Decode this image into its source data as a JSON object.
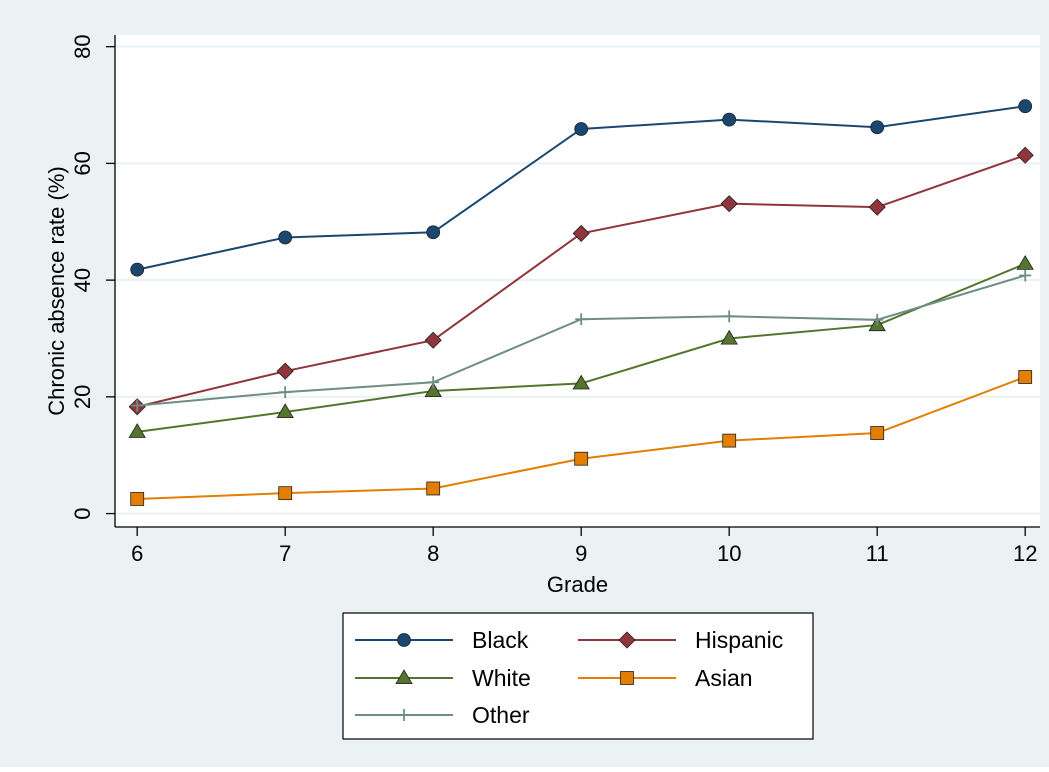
{
  "chart_data": {
    "type": "line",
    "title": "",
    "xlabel": "Grade",
    "ylabel": "Chronic absence rate (%)",
    "x": [
      6,
      7,
      8,
      9,
      10,
      11,
      12
    ],
    "x_tick_labels": [
      "6",
      "7",
      "8",
      "9",
      "10",
      "11",
      "12"
    ],
    "y_ticks": [
      0,
      20,
      40,
      60,
      80
    ],
    "y_tick_labels": [
      "0",
      "20",
      "40",
      "60",
      "80"
    ],
    "xlim": [
      5.85,
      12.1
    ],
    "ylim": [
      -2.3,
      82
    ],
    "grid": true,
    "legend_position": "bottom",
    "series": [
      {
        "name": "Black",
        "color": "#1a476f",
        "marker": "circle",
        "values": [
          41.8,
          47.3,
          48.2,
          65.9,
          67.5,
          66.2,
          69.8
        ]
      },
      {
        "name": "Hispanic",
        "color": "#90353b",
        "marker": "diamond",
        "values": [
          18.3,
          24.4,
          29.7,
          48.0,
          53.1,
          52.5,
          61.4
        ]
      },
      {
        "name": "White",
        "color": "#55752f",
        "marker": "triangle",
        "values": [
          14.0,
          17.4,
          21.0,
          22.3,
          30.0,
          32.3,
          42.8
        ]
      },
      {
        "name": "Asian",
        "color": "#e37e00",
        "marker": "square",
        "values": [
          2.5,
          3.5,
          4.3,
          9.4,
          12.5,
          13.8,
          23.4
        ]
      },
      {
        "name": "Other",
        "color": "#6e8e84",
        "marker": "plus",
        "values": [
          18.5,
          20.8,
          22.5,
          33.3,
          33.8,
          33.2,
          40.8
        ]
      }
    ]
  }
}
